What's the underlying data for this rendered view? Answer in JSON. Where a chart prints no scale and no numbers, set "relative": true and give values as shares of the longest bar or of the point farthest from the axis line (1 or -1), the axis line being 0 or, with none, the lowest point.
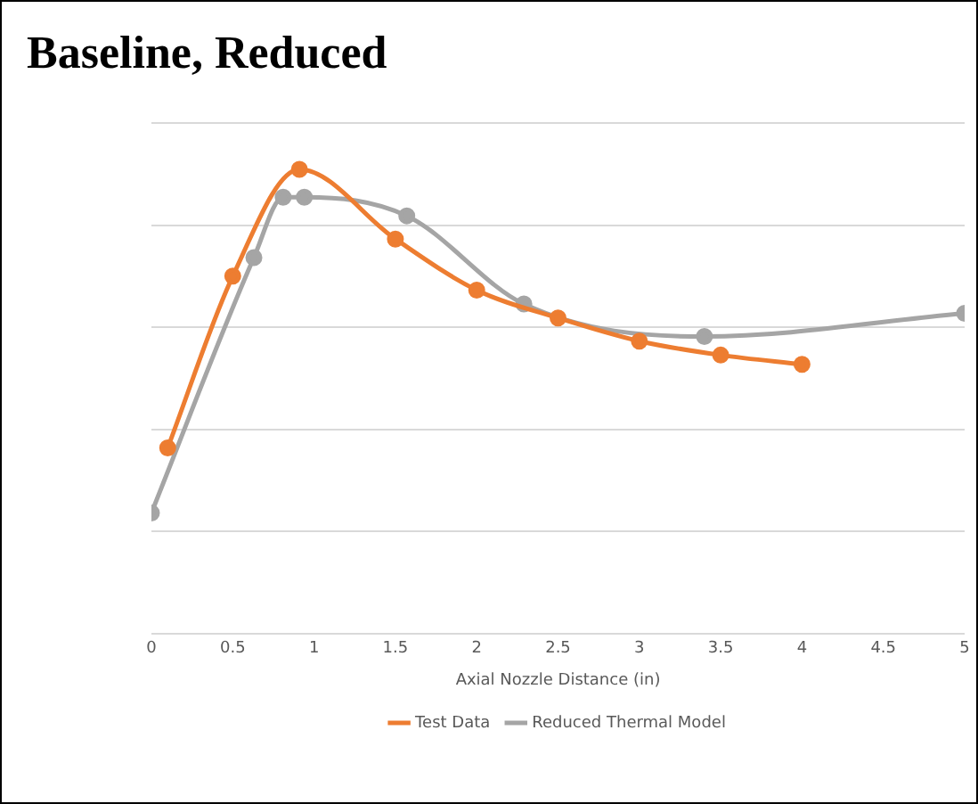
{
  "chart_data": {
    "type": "line",
    "title": "Baseline, Reduced",
    "xlabel": "Axial Nozzle Distance (in)",
    "relative": true,
    "xlim": [
      0,
      5
    ],
    "xticks": [
      0,
      0.5,
      1,
      1.5,
      2,
      2.5,
      3,
      3.5,
      4,
      4.5,
      5
    ],
    "tick_labels": "x",
    "grid": "y",
    "legend": "bottom",
    "marker": "circle",
    "series": [
      {
        "name": "Test Data",
        "color": "#ed7d31",
        "x": [
          0.1,
          0.5,
          0.91,
          1.5,
          2,
          2.5,
          3,
          3.5,
          4
        ],
        "values": [
          0.4,
          0.77,
          1,
          0.85,
          0.74,
          0.68,
          0.63,
          0.6,
          0.58
        ]
      },
      {
        "name": "Reduced Thermal Model",
        "color": "#a5a5a5",
        "x": [
          0,
          0.63,
          0.81,
          0.94,
          1.57,
          2.29,
          3.4,
          5
        ],
        "values": [
          0.26,
          0.81,
          0.94,
          0.94,
          0.9,
          0.71,
          0.64,
          0.69
        ]
      }
    ]
  }
}
